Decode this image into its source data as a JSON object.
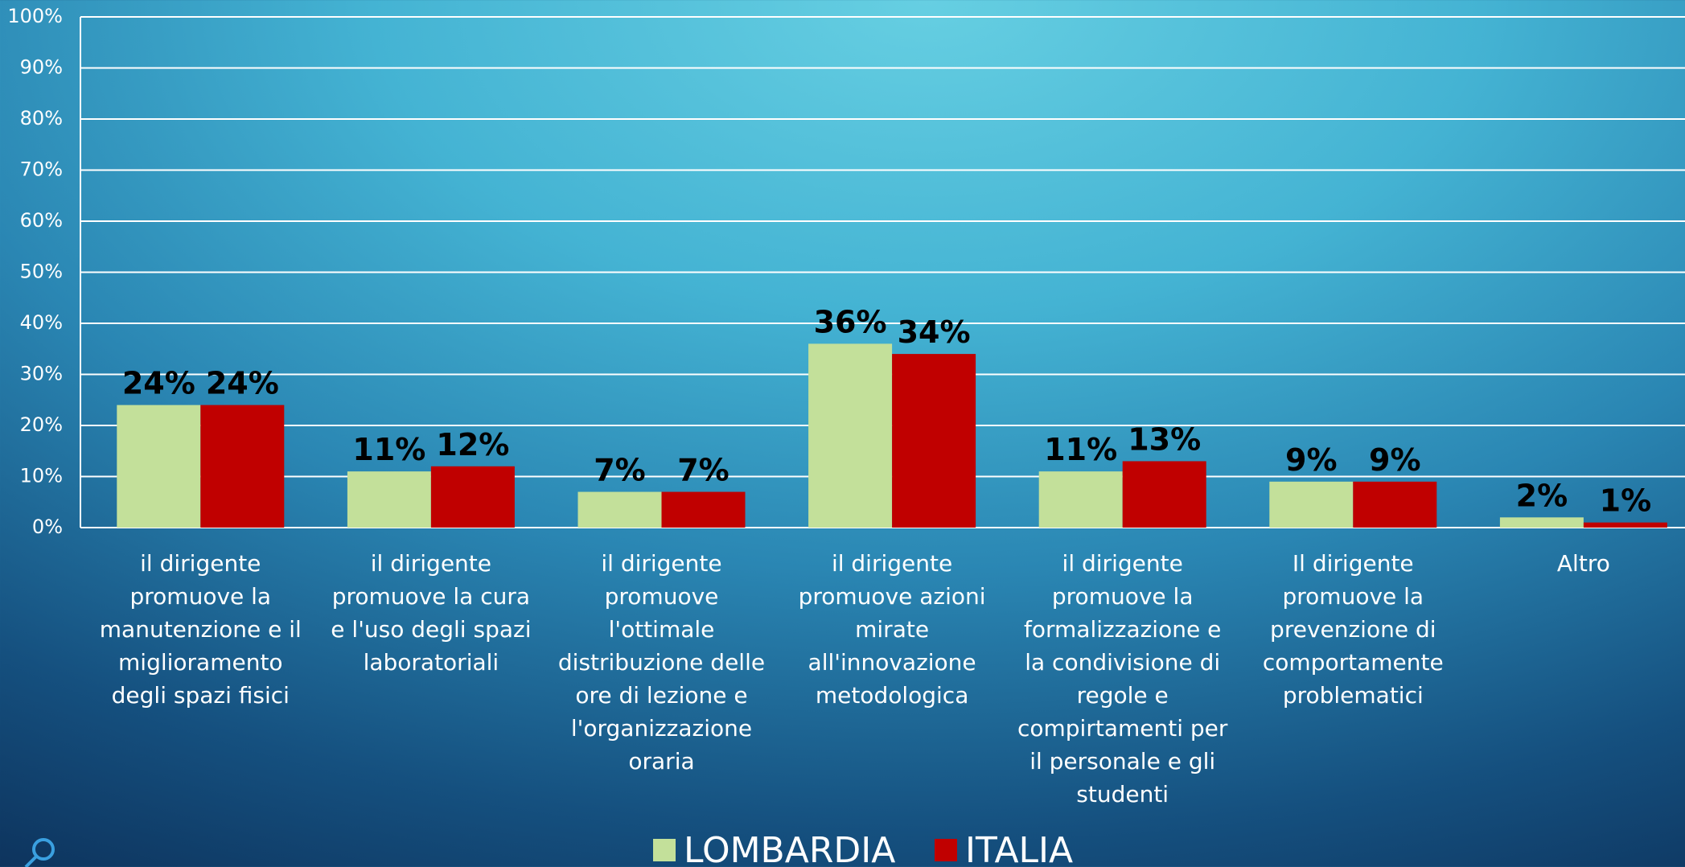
{
  "chart_data": {
    "type": "bar",
    "categories": [
      "il dirigente promuove la manutenzione e il miglioramento degli spazi fisici",
      "il dirigente promuove la cura e l'uso degli spazi laboratoriali",
      "il dirigente promuove l'ottimale distribuzione delle ore di lezione e l'organizzazione oraria",
      "il dirigente promuove azioni mirate all'innovazione metodologica",
      "il dirigente promuove la formalizzazione e la condivisione di regole e compirtamenti per il personale e gli studenti",
      "Il dirigente promuove la prevenzione di comportamente problematici",
      "Altro"
    ],
    "series": [
      {
        "name": "LOMBARDIA",
        "color": "#c3e09a",
        "values": [
          24,
          11,
          7,
          36,
          11,
          9,
          2
        ],
        "value_labels": [
          "24%",
          "11%",
          "7%",
          "36%",
          "11%",
          "9%",
          "2%"
        ]
      },
      {
        "name": "ITALIA",
        "color": "#c00000",
        "values": [
          24,
          12,
          7,
          34,
          13,
          9,
          1
        ],
        "value_labels": [
          "24%",
          "12%",
          "7%",
          "34%",
          "13%",
          "9%",
          "1%"
        ]
      }
    ],
    "ylim": [
      0,
      100
    ],
    "yticks": [
      {
        "value": 0,
        "label": "0%"
      },
      {
        "value": 10,
        "label": "10%"
      },
      {
        "value": 20,
        "label": "20%"
      },
      {
        "value": 30,
        "label": "30%"
      },
      {
        "value": 40,
        "label": "40%"
      },
      {
        "value": 50,
        "label": "50%"
      },
      {
        "value": 60,
        "label": "60%"
      },
      {
        "value": 70,
        "label": "70%"
      },
      {
        "value": 80,
        "label": "80%"
      },
      {
        "value": 90,
        "label": "90%"
      },
      {
        "value": 100,
        "label": "100%"
      }
    ],
    "grid": true,
    "legend": "bottom"
  }
}
